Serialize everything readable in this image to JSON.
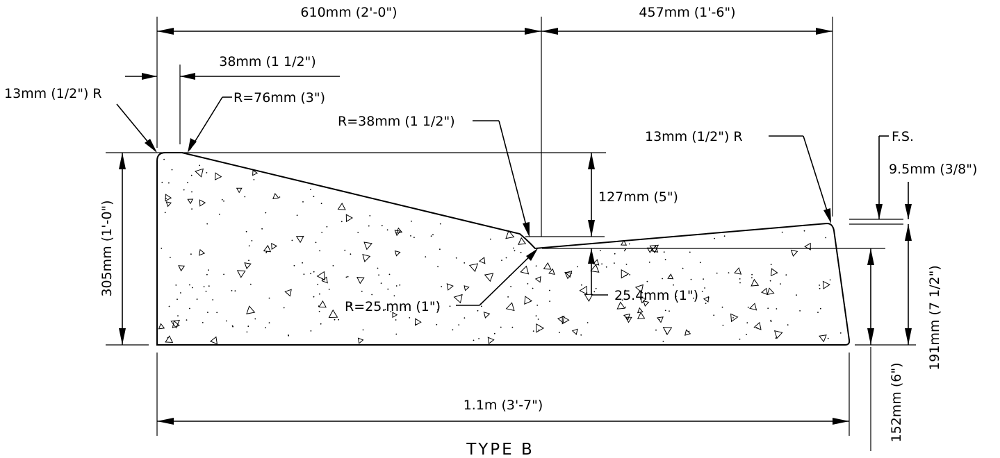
{
  "drawing": {
    "title": "TYPE B",
    "ink_color": "#000000",
    "background_color": "#ffffff",
    "dimensions": {
      "top_width_left": "610mm (2'-0\")",
      "top_width_right": "457mm (1'-6\")",
      "lip_offset": "38mm (1 1/2\")",
      "nose_radius_left": "13mm (1/2\") R",
      "top_radius": "R=76mm (3\")",
      "valley_radius_top": "R=38mm (1 1/2\")",
      "edge_radius_right": "13mm (1/2\") R",
      "finished_surface": "F.S.",
      "lip_thickness": "9.5mm (3/8\")",
      "curb_drop": "127mm (5\")",
      "overall_height": "305mm (1'-0\")",
      "valley_radius_bottom": "R=25.mm (1\")",
      "valley_depth": "25.4mm (1\")",
      "back_height": "191mm (7 1/2\")",
      "base_width": "1.1m (3'-7\")",
      "pan_height": "152mm (6\")"
    }
  }
}
